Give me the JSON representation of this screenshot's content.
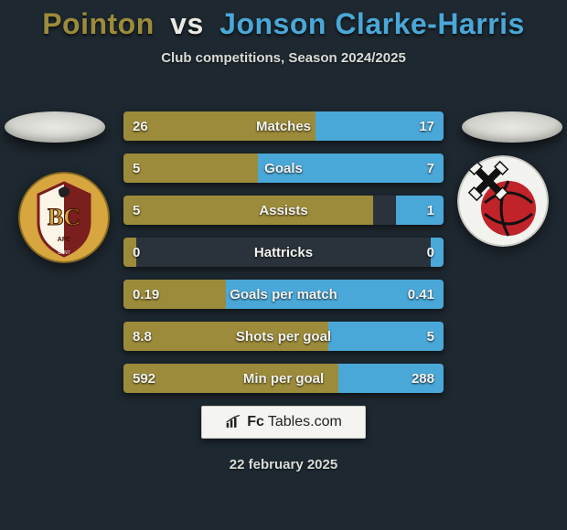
{
  "header": {
    "player1": "Pointon",
    "vs": "vs",
    "player2": "Jonson Clarke-Harris",
    "player1_color": "#9c8b3a",
    "player2_color": "#4aa8d8",
    "subtitle": "Club competitions, Season 2024/2025"
  },
  "colors": {
    "background": "#1e2830",
    "bar_left": "#9c8b3a",
    "bar_right": "#4aa8d8",
    "bar_bg": "#2a333b",
    "text_light": "#f2f2ee",
    "ellipse": "#e8e8e4"
  },
  "stats": [
    {
      "label": "Matches",
      "left_val": "26",
      "right_val": "17",
      "left_pct": 60,
      "right_pct": 40
    },
    {
      "label": "Goals",
      "left_val": "5",
      "right_val": "7",
      "left_pct": 42,
      "right_pct": 58
    },
    {
      "label": "Assists",
      "left_val": "5",
      "right_val": "1",
      "left_pct": 78,
      "right_pct": 15
    },
    {
      "label": "Hattricks",
      "left_val": "0",
      "right_val": "0",
      "left_pct": 4,
      "right_pct": 4
    },
    {
      "label": "Goals per match",
      "left_val": "0.19",
      "right_val": "0.41",
      "left_pct": 32,
      "right_pct": 68
    },
    {
      "label": "Shots per goal",
      "left_val": "8.8",
      "right_val": "5",
      "left_pct": 64,
      "right_pct": 36
    },
    {
      "label": "Min per goal",
      "left_val": "592",
      "right_val": "288",
      "left_pct": 67,
      "right_pct": 33
    }
  ],
  "crest_left": {
    "name": "bradford-city-crest",
    "bg_color": "#d7a63f",
    "accent_color": "#7a1e1e",
    "text": "BC"
  },
  "crest_right": {
    "name": "rotherham-crest",
    "bg_color": "#f2f2ee",
    "accent_color": "#c0232a",
    "text": ""
  },
  "footer": {
    "brand1": "Fc",
    "brand2": "Tables.com",
    "date": "22 february 2025"
  }
}
